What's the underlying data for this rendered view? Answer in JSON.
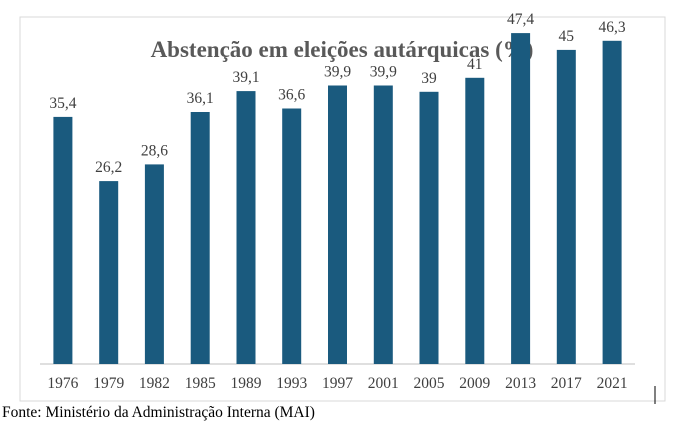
{
  "chart_data": {
    "type": "bar",
    "title": "Abstenção em eleições autárquicas (%)",
    "categories": [
      "1976",
      "1979",
      "1982",
      "1985",
      "1989",
      "1993",
      "1997",
      "2001",
      "2005",
      "2009",
      "2013",
      "2017",
      "2021"
    ],
    "values": [
      35.4,
      26.2,
      28.6,
      36.1,
      39.1,
      36.6,
      39.9,
      39.9,
      39,
      41,
      47.4,
      45,
      46.3
    ],
    "value_labels": [
      "35,4",
      "26,2",
      "28,6",
      "36,1",
      "39,1",
      "36,6",
      "39,9",
      "39,9",
      "39",
      "41",
      "47,4",
      "45",
      "46,3"
    ],
    "xlabel": "",
    "ylabel": "",
    "ylim": [
      0,
      50
    ],
    "grid": false,
    "legend": "none",
    "bar_color": "#1a5a7e"
  },
  "source": "Fonte: Ministério da Administração Interna (MAI)"
}
